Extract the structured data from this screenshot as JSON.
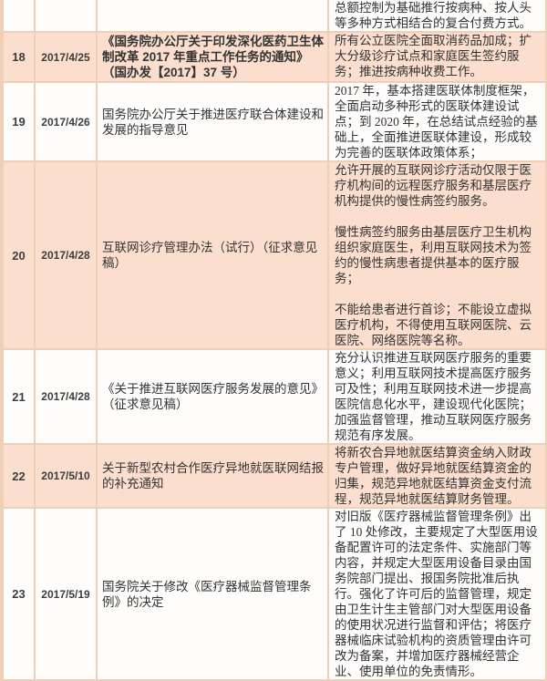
{
  "colors": {
    "row_shade": "#fbdecd",
    "row_plain": "#fffdfc",
    "grid_border": "#eed0b7",
    "text": "#333333"
  },
  "rows": [
    {
      "no": "",
      "date": "",
      "title": "",
      "desc": "总额控制为基础推行按病种、按人头等多种方式相结合的复合付费方式。"
    },
    {
      "no": "18",
      "date": "2017/4/25",
      "title": "《国务院办公厅关于印发深化医药卫生体制改革 2017 年重点工作任务的通知》（国办发【2017】37 号）",
      "desc": "所有公立医院全面取消药品加成；扩大分级诊疗试点和家庭医生签约服务；推进按病种收费工作。"
    },
    {
      "no": "19",
      "date": "2017/4/26",
      "title": "国务院办公厅关于推进医疗联合体建设和发展的指导意见",
      "desc": "2017 年，基本搭建医联体制度框架，全面启动多种形式的医联体建设试点；到 2020 年，在总结试点经验的基础上，全面推进医联体建设，形成较为完善的医联体政策体系；"
    },
    {
      "no": "20",
      "date": "2017/4/28",
      "title": "互联网诊疗管理办法（试行）（征求意见稿）",
      "desc": "允许开展的互联网诊疗活动仅限于医疗机构间的远程医疗服务和基层医疗机构提供的慢性病签约服务。\n\n慢性病签约服务由基层医疗卫生机构组织家庭医生，利用互联网技术为签约的慢性病患者提供基本的医疗服务；\n\n不能给患者进行首诊；不能设立虚拟医疗机构，不得使用互联网医院、云医院、网络医院等名称。"
    },
    {
      "no": "21",
      "date": "2017/4/28",
      "title": "《关于推进互联网医疗服务发展的意见》（征求意见稿）",
      "desc": "充分认识推进互联网医疗服务的重要意义；利用互联网技术提高医疗服务可及性；利用互联网技术进一步提高医院信息化水平，建设现代化医院；加强监督管理，推动互联网医疗服务规范有序发展。"
    },
    {
      "no": "22",
      "date": "2017/5/10",
      "title": "关于新型农村合作医疗异地就医联网结报的补充通知",
      "desc": "将新农合异地就医结算资金纳入财政专户管理，做好异地就医结算资金的归集，规范异地就医结算资金支付流程，规范异地就医结算财务管理。"
    },
    {
      "no": "23",
      "date": "2017/5/19",
      "title": "国务院关于修改《医疗器械监督管理条例》的决定",
      "desc": "对旧版《医疗器械监督管理条例》出了 10 处修改，主要规定了大型医用设备配置许可的法定条件、实施部门等内容，并规定大型医用设备目录由国务院部门提出、报国务院批准后执行。强化了许可后的监督管理，规定由卫生计生主管部门对大型医用设备的使用状况进行监督和评估；将医疗器械临床试验机构的资质管理由许可改为备案，并增加医疗器械经营企业、使用单位的免责情形。"
    }
  ]
}
